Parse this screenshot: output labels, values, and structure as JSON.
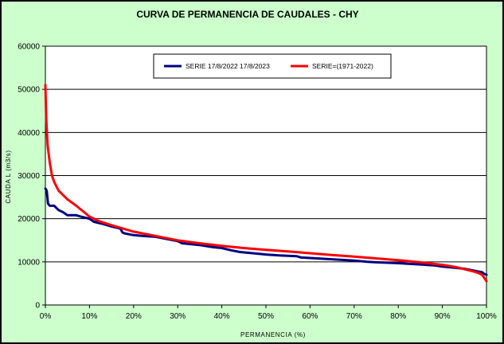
{
  "chart_data": {
    "type": "line",
    "title": "CURVA DE PERMANENCIA DE CAUDALES - CHY",
    "xlabel": "PERMANENCIA (%)",
    "ylabel": "CAUDA L (m3/s)",
    "xlim": [
      0,
      100
    ],
    "ylim": [
      0,
      60000
    ],
    "x_ticks": [
      0,
      10,
      20,
      30,
      40,
      50,
      60,
      70,
      80,
      90,
      100
    ],
    "x_tick_labels": [
      "0%",
      "10%",
      "20%",
      "30%",
      "40%",
      "50%",
      "60%",
      "70%",
      "80%",
      "90%",
      "100%"
    ],
    "y_ticks": [
      0,
      10000,
      20000,
      30000,
      40000,
      50000,
      60000
    ],
    "y_tick_labels": [
      "0",
      "10000",
      "20000",
      "30000",
      "40000",
      "50000",
      "60000"
    ],
    "grid": "horizontal",
    "legend": "top",
    "background_color": "#ccffcc",
    "plot_background_color": "#ffffff",
    "series": [
      {
        "name": "SERIE 17/8/2022 17/8/2023",
        "color": "#000080",
        "points": [
          [
            0,
            27000
          ],
          [
            0.3,
            26500
          ],
          [
            0.6,
            23500
          ],
          [
            1,
            23000
          ],
          [
            2,
            23000
          ],
          [
            3,
            22000
          ],
          [
            4,
            21500
          ],
          [
            5,
            20800
          ],
          [
            7,
            20800
          ],
          [
            8,
            20500
          ],
          [
            10,
            20000
          ],
          [
            11,
            19300
          ],
          [
            13,
            18800
          ],
          [
            15,
            18200
          ],
          [
            17,
            17700
          ],
          [
            17.5,
            16800
          ],
          [
            18,
            16600
          ],
          [
            20,
            16200
          ],
          [
            22,
            16000
          ],
          [
            25,
            15800
          ],
          [
            28,
            15200
          ],
          [
            30,
            14800
          ],
          [
            31,
            14300
          ],
          [
            33,
            14100
          ],
          [
            35,
            13900
          ],
          [
            38,
            13400
          ],
          [
            40,
            13200
          ],
          [
            42,
            12700
          ],
          [
            44,
            12300
          ],
          [
            46,
            12100
          ],
          [
            48,
            11900
          ],
          [
            50,
            11700
          ],
          [
            53,
            11500
          ],
          [
            57,
            11300
          ],
          [
            58,
            11000
          ],
          [
            60,
            10900
          ],
          [
            65,
            10600
          ],
          [
            70,
            10300
          ],
          [
            73,
            10000
          ],
          [
            75,
            9900
          ],
          [
            80,
            9700
          ],
          [
            85,
            9400
          ],
          [
            88,
            9200
          ],
          [
            90,
            8900
          ],
          [
            93,
            8600
          ],
          [
            95,
            8400
          ],
          [
            97,
            8000
          ],
          [
            98,
            7800
          ],
          [
            99,
            7600
          ],
          [
            99.5,
            7200
          ],
          [
            100,
            7000
          ]
        ]
      },
      {
        "name": "SERIE=(1971-2022)",
        "color": "#ff0000",
        "points": [
          [
            0,
            51000
          ],
          [
            0.2,
            43000
          ],
          [
            0.5,
            37000
          ],
          [
            1,
            33000
          ],
          [
            1.5,
            30000
          ],
          [
            2,
            28500
          ],
          [
            3,
            26500
          ],
          [
            4,
            25500
          ],
          [
            5,
            24500
          ],
          [
            7,
            23000
          ],
          [
            10,
            20500
          ],
          [
            12,
            19500
          ],
          [
            15,
            18500
          ],
          [
            20,
            17000
          ],
          [
            25,
            16000
          ],
          [
            30,
            15000
          ],
          [
            35,
            14300
          ],
          [
            40,
            13700
          ],
          [
            45,
            13200
          ],
          [
            50,
            12800
          ],
          [
            55,
            12400
          ],
          [
            60,
            12000
          ],
          [
            65,
            11600
          ],
          [
            70,
            11200
          ],
          [
            75,
            10800
          ],
          [
            80,
            10400
          ],
          [
            85,
            9900
          ],
          [
            90,
            9300
          ],
          [
            93,
            8800
          ],
          [
            95,
            8300
          ],
          [
            97,
            7800
          ],
          [
            98,
            7500
          ],
          [
            99,
            7000
          ],
          [
            99.5,
            6300
          ],
          [
            100,
            5500
          ]
        ]
      }
    ]
  }
}
